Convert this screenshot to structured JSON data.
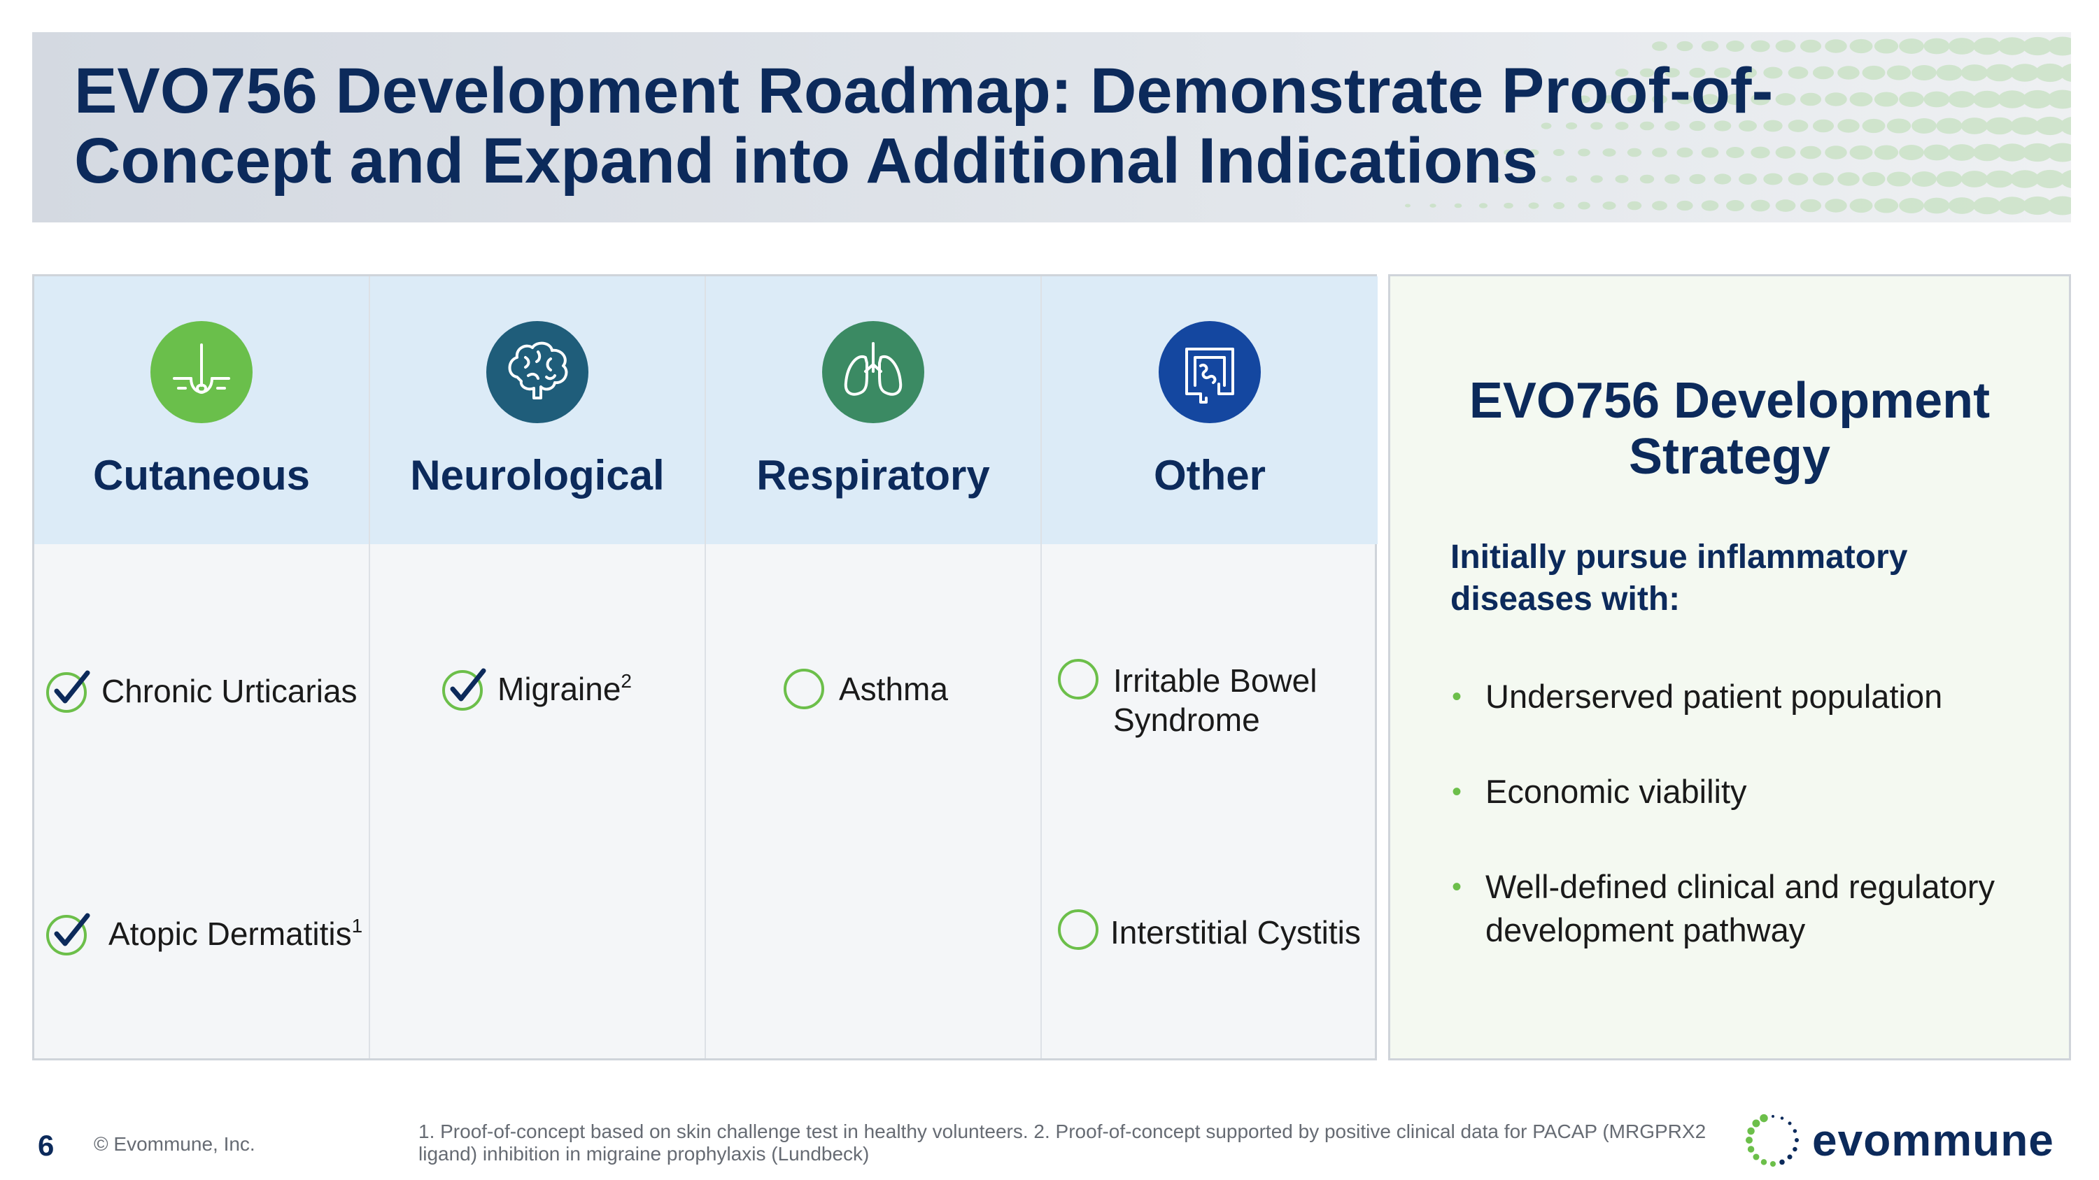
{
  "title": "EVO756 Development Roadmap: Demonstrate Proof-of-Concept and Expand into Additional Indications",
  "columns": [
    {
      "label": "Cutaneous",
      "icon": "skin-hair-icon",
      "color": "#6abf4b",
      "items": [
        {
          "name": "Chronic Urticarias",
          "sup": "",
          "status": "check"
        },
        {
          "name": "Atopic Dermatitis",
          "sup": "1",
          "status": "check"
        }
      ]
    },
    {
      "label": "Neurological",
      "icon": "brain-icon",
      "color": "#1f5d7a",
      "items": [
        {
          "name": "Migraine",
          "sup": "2",
          "status": "check"
        }
      ]
    },
    {
      "label": "Respiratory",
      "icon": "lungs-icon",
      "color": "#3b8a63",
      "items": [
        {
          "name": "Asthma",
          "sup": "",
          "status": "open"
        }
      ]
    },
    {
      "label": "Other",
      "icon": "intestine-icon",
      "color": "#1447a0",
      "items": [
        {
          "name": "Irritable Bowel Syndrome",
          "sup": "",
          "status": "open"
        },
        {
          "name": "Interstitial Cystitis",
          "sup": "",
          "status": "open"
        }
      ]
    }
  ],
  "strategy": {
    "title": "EVO756 Development Strategy",
    "intro": "Initially pursue inflammatory diseases with:",
    "bullets": [
      "Underserved patient population",
      "Economic viability",
      "Well-defined clinical and regulatory development pathway"
    ]
  },
  "footer": {
    "page_number": "6",
    "copyright": "© Evommune, Inc.",
    "footnote": "1. Proof-of-concept based on skin challenge test in healthy volunteers.  2. Proof-of-concept supported by positive clinical data for PACAP (MRGPRX2 ligand) inhibition in migraine prophylaxis (Lundbeck)",
    "logo_text": "evommune"
  },
  "colors": {
    "navy": "#0c2a5b",
    "header_blue": "#dcebf7",
    "check_green": "#6cbf4a",
    "check_navy": "#0c2a5b"
  }
}
